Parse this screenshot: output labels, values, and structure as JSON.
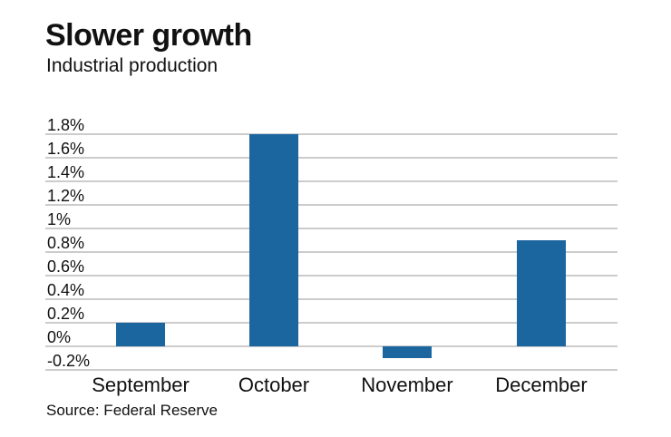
{
  "header": {
    "title": "Slower growth",
    "subtitle": "Industrial production"
  },
  "footer": {
    "source": "Source: Federal Reserve"
  },
  "colors": {
    "bar": "#1c66a0",
    "grid": "#9a9a9a"
  },
  "chart_data": {
    "type": "bar",
    "title": "Slower growth",
    "subtitle": "Industrial production",
    "categories": [
      "September",
      "October",
      "November",
      "December"
    ],
    "values": [
      0.2,
      1.8,
      -0.1,
      0.9
    ],
    "unit": "%",
    "ylim": [
      -0.2,
      1.8
    ],
    "yticks": [
      -0.2,
      0,
      0.2,
      0.4,
      0.6,
      0.8,
      1,
      1.2,
      1.4,
      1.6,
      1.8
    ],
    "ytick_labels": [
      "-0.2%",
      "0%",
      "0.2%",
      "0.4%",
      "0.6%",
      "0.8%",
      "1%",
      "1.2%",
      "1.4%",
      "1.6%",
      "1.8%"
    ],
    "grid": true,
    "legend": false,
    "source": "Source: Federal Reserve"
  }
}
